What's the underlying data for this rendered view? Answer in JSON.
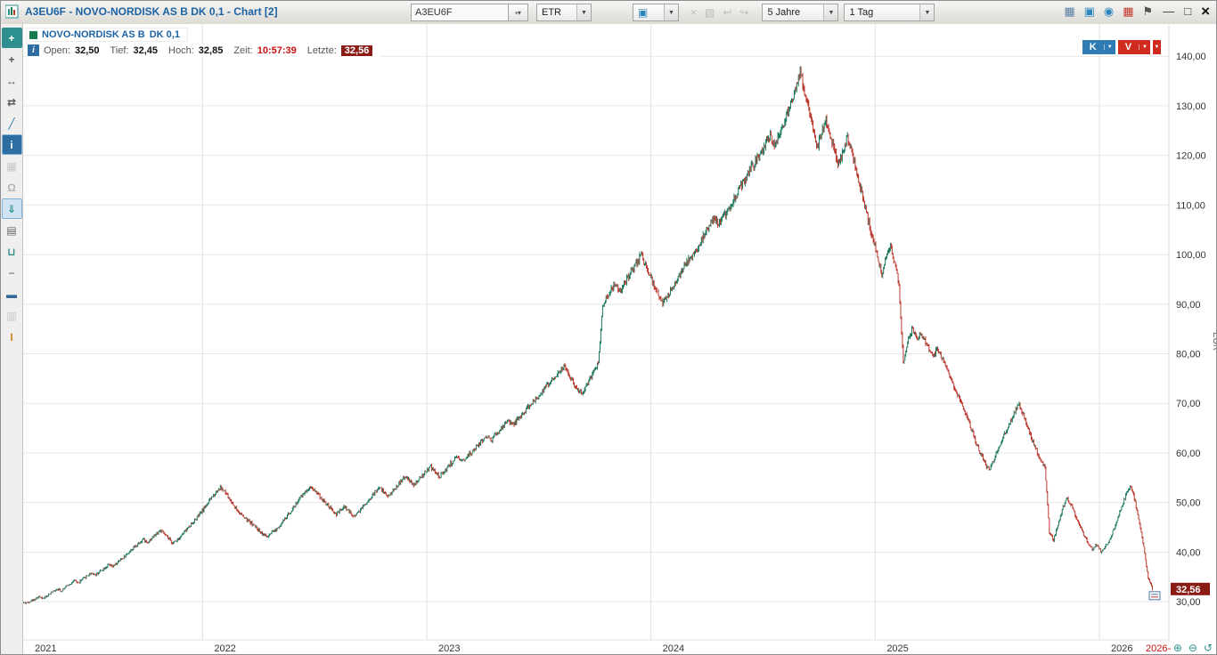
{
  "window": {
    "title": "A3EU6F - NOVO-NORDISK AS B  DK 0,1 - Chart [2]",
    "minimize_glyph": "—",
    "maximize_glyph": "□",
    "close_glyph": "×"
  },
  "titlebar": {
    "symbol_value": "A3EU6F",
    "symbol_button_glyph": "▪▾",
    "exchange_value": "ETR",
    "layout_select_glyph": "▣",
    "disabled_icons": [
      {
        "name": "delete-icon",
        "glyph": "×",
        "disabled": true
      },
      {
        "name": "copy-template-icon",
        "glyph": "▧",
        "disabled": true
      },
      {
        "name": "undo-icon",
        "glyph": "↩",
        "disabled": true
      },
      {
        "name": "redo-icon",
        "glyph": "↪",
        "disabled": true
      }
    ],
    "period_value": "5 Jahre",
    "interval_value": "1 Tag",
    "right_icons": [
      {
        "name": "workspace-grid-icon",
        "glyph": "▦",
        "color": "#5a7fa8"
      },
      {
        "name": "chart-panel-icon",
        "glyph": "▣",
        "color": "#2e86c1"
      },
      {
        "name": "visibility-icon",
        "glyph": "◉",
        "color": "#2e86c1"
      },
      {
        "name": "heatmap-icon",
        "glyph": "▦",
        "color": "#c0392b"
      },
      {
        "name": "pin-icon",
        "glyph": "⚑",
        "color": "#555555"
      }
    ]
  },
  "left_toolbar": {
    "tools": [
      {
        "name": "crosshair-tool",
        "glyph": "+",
        "color": "#ffffff",
        "bg": "#2e8f8f"
      },
      {
        "name": "add-object-tool",
        "glyph": "+",
        "color": "#555555"
      },
      {
        "name": "horizontal-line-tool",
        "glyph": "↔",
        "color": "#555555"
      },
      {
        "name": "parallel-channel-tool",
        "glyph": "⇄",
        "color": "#555555"
      },
      {
        "name": "trendline-tool",
        "glyph": "╱",
        "color": "#2e7fb0"
      },
      {
        "name": "info-tool",
        "glyph": "i",
        "color": "#ffffff",
        "bg": "#2e6da4",
        "selected": true
      },
      {
        "name": "snapshot-tool",
        "glyph": "▦",
        "color": "#c6c6c6",
        "disabled": true
      },
      {
        "name": "alarm-tool",
        "glyph": "Ω",
        "color": "#b5b5b5",
        "disabled": true
      },
      {
        "name": "save-chart-tool",
        "glyph": "⇓",
        "color": "#2e8f8f",
        "selected": true
      },
      {
        "name": "print-tool",
        "glyph": "▤",
        "color": "#666666"
      },
      {
        "name": "order-ticket-tool",
        "glyph": "⊔",
        "color": "#2e8f8f"
      },
      {
        "name": "divider-tool",
        "glyph": "−",
        "color": "#888888"
      },
      {
        "name": "portfolio-tool",
        "glyph": "▬",
        "color": "#33689c"
      },
      {
        "name": "watchlist-tool",
        "glyph": "▥",
        "color": "#c6c6c6",
        "disabled": true
      },
      {
        "name": "cursor-mode-tool",
        "glyph": "I",
        "color": "#c9861f"
      }
    ]
  },
  "legend": {
    "swatch_color": "#157a4f",
    "name": "NOVO-NORDISK AS B",
    "detail": "DK 0,1"
  },
  "quote": {
    "info_glyph": "i",
    "open_label": "Open:",
    "open": "32,50",
    "low_label": "Tief:",
    "low": "32,45",
    "high_label": "Hoch:",
    "high": "32,85",
    "time_label": "Zeit:",
    "time": "10:57:39",
    "last_label": "Letzte:",
    "last": "32,56"
  },
  "trade": {
    "buy_label": "K",
    "sell_label": "V",
    "arrow_glyph": "▼"
  },
  "axis": {
    "eur_label": "EUR",
    "price_tag": "32,56",
    "x_end_label": "2026-"
  },
  "zoom_controls": [
    {
      "name": "zoom-in-icon",
      "glyph": "⊕"
    },
    {
      "name": "zoom-out-icon",
      "glyph": "⊖"
    },
    {
      "name": "zoom-reset-icon",
      "glyph": "↺"
    }
  ],
  "chart_data": {
    "type": "candlestick",
    "instrument": "NOVO-NORDISK AS B DK 0,1",
    "wkn": "A3EU6F",
    "exchange": "ETR",
    "period": "5 Jahre",
    "interval": "1 Tag",
    "currency": "EUR",
    "xlim": [
      2021.2,
      2026.31
    ],
    "ylim": [
      22.3,
      146.5
    ],
    "x_start_year": 2021.2,
    "weeks_per_year": 52.2,
    "y_ticks": [
      30,
      40,
      50,
      60,
      70,
      80,
      90,
      100,
      110,
      120,
      130,
      140
    ],
    "x_ticks": [
      2021,
      2022,
      2023,
      2024,
      2025,
      2026
    ],
    "open": 32.5,
    "low": 32.45,
    "high": 32.85,
    "time": "10:57:39",
    "last_price": 32.56,
    "colors": {
      "up": "#1d7a5f",
      "down": "#bd3a30",
      "grid": "#e7e7e7",
      "grid_v": "#e0e0e0",
      "tag_bg": "#8a1c15",
      "tag_fg": "#ffffff",
      "axis_text": "#333333",
      "x_end": "#cc1111"
    },
    "weekly_closes": [
      29.8,
      30.2,
      30.6,
      31,
      30.7,
      31.4,
      32,
      32.6,
      32.2,
      33,
      33.6,
      34.2,
      33.8,
      34.6,
      35.2,
      35.8,
      35.4,
      36.2,
      36.8,
      37.4,
      37,
      37.8,
      38.6,
      39.4,
      40.2,
      41,
      41.8,
      42.6,
      42,
      42.8,
      43.6,
      44.4,
      43.6,
      42.6,
      41.8,
      42.6,
      43.4,
      44.4,
      45.4,
      46.4,
      47.4,
      48.6,
      49.8,
      51,
      52.2,
      53,
      52.2,
      50.8,
      49.6,
      48.4,
      47.4,
      46.6,
      46,
      45.2,
      44.4,
      43.6,
      43,
      43.8,
      44.6,
      45.6,
      46.6,
      47.8,
      49,
      50.2,
      51.4,
      52.4,
      53.2,
      52.4,
      51.4,
      50.4,
      49.4,
      48.4,
      47.6,
      48.4,
      49.2,
      48.2,
      47.2,
      48,
      49,
      50,
      51,
      52,
      53,
      52.2,
      51.2,
      52.2,
      53.2,
      54.2,
      55.2,
      54.4,
      53.4,
      54.4,
      55.4,
      56.4,
      57.2,
      56.2,
      55.2,
      56.2,
      57.2,
      58.2,
      59,
      58.2,
      59,
      59.8,
      60.5,
      61.5,
      62.5,
      63.5,
      62.5,
      63.5,
      64.5,
      65.5,
      66.5,
      65.5,
      66.5,
      67.5,
      68.5,
      69.5,
      70.5,
      71.5,
      72.5,
      73.5,
      74.5,
      75.5,
      76.5,
      77.5,
      76,
      74.5,
      73,
      72,
      73.5,
      75,
      76.5,
      78,
      90,
      91.5,
      93,
      94.5,
      92.5,
      94,
      95.5,
      97,
      98.5,
      100,
      98,
      96,
      93.5,
      91.5,
      90,
      91.5,
      93,
      94.5,
      96,
      97.5,
      99,
      100,
      101.5,
      103,
      104.5,
      106,
      107.5,
      106,
      107.5,
      109,
      110.5,
      112,
      113.5,
      115,
      116.5,
      118,
      119.5,
      121,
      122.5,
      124,
      122,
      124,
      126,
      128.5,
      131,
      133.5,
      137,
      133,
      129,
      125.5,
      122,
      124.5,
      127,
      124,
      121,
      118,
      121,
      123.5,
      120.5,
      117,
      113.5,
      110,
      106.5,
      103,
      99.5,
      96,
      99,
      102,
      98,
      94,
      78,
      82,
      85,
      83,
      84,
      82.5,
      81,
      79.5,
      81,
      79,
      77,
      75,
      73,
      71,
      69,
      67,
      64.5,
      62,
      60,
      58,
      56.5,
      58.5,
      60.5,
      62.5,
      64.5,
      66.5,
      68.5,
      70,
      67.5,
      65,
      62.5,
      60.5,
      58.5,
      57,
      44,
      42.5,
      45.5,
      48.5,
      51,
      49.5,
      47.5,
      45.5,
      43.5,
      42,
      40.5,
      41.5,
      40,
      41,
      42.5,
      44.5,
      47,
      49.5,
      52,
      53.5,
      50,
      46,
      41,
      35,
      32.56
    ]
  }
}
